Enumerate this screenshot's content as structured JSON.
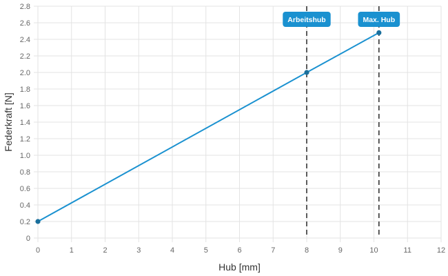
{
  "chart_data": {
    "type": "line",
    "title": "",
    "xlabel": "Hub [mm]",
    "ylabel": "Federkraft [N]",
    "xlim": [
      0,
      12
    ],
    "ylim": [
      0,
      2.8
    ],
    "x_ticks": [
      "0",
      "1",
      "2",
      "3",
      "4",
      "5",
      "6",
      "7",
      "8",
      "9",
      "10",
      "11",
      "12"
    ],
    "y_ticks": [
      "0",
      "0.2",
      "0.4",
      "0.6",
      "0.8",
      "1.0",
      "1.2",
      "1.4",
      "1.6",
      "1.8",
      "2.0",
      "2.2",
      "2.4",
      "2.6",
      "2.8"
    ],
    "grid": true,
    "series": [
      {
        "points": [
          {
            "x": 0,
            "y": 0.2
          },
          {
            "x": 8,
            "y": 2.0
          },
          {
            "x": 10.15,
            "y": 2.48
          }
        ]
      }
    ],
    "markers": [
      {
        "label": "Arbeitshub",
        "x": 8
      },
      {
        "label": "Max. Hub",
        "x": 10.15
      }
    ]
  },
  "colors": {
    "line": "#1a91d0",
    "point": "#1a6f9c",
    "badge": "#1a91d0",
    "marker_line": "#333333",
    "grid": "#e3e3e3"
  }
}
